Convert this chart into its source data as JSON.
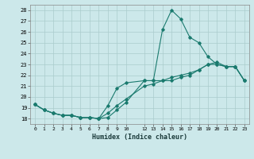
{
  "xlabel": "Humidex (Indice chaleur)",
  "bg_color": "#cce8ea",
  "grid_color": "#aacccc",
  "line_color": "#1a7a6e",
  "xlim": [
    -0.5,
    23.5
  ],
  "ylim": [
    17.5,
    28.5
  ],
  "xticks": [
    0,
    1,
    2,
    3,
    4,
    5,
    6,
    7,
    8,
    9,
    10,
    12,
    13,
    14,
    15,
    16,
    17,
    18,
    19,
    20,
    21,
    22,
    23
  ],
  "yticks": [
    18,
    19,
    20,
    21,
    22,
    23,
    24,
    25,
    26,
    27,
    28
  ],
  "lines": [
    {
      "x": [
        0,
        1,
        2,
        3,
        4,
        5,
        6,
        7,
        8,
        9,
        10,
        12,
        13,
        14,
        15,
        16,
        17,
        18,
        19,
        20,
        21,
        22,
        23
      ],
      "y": [
        19.3,
        18.8,
        18.5,
        18.3,
        18.3,
        18.1,
        18.1,
        18.0,
        18.1,
        18.8,
        19.5,
        21.5,
        21.5,
        26.2,
        28.0,
        27.2,
        25.5,
        25.0,
        23.7,
        23.0,
        22.8,
        22.8,
        21.5
      ]
    },
    {
      "x": [
        0,
        1,
        2,
        3,
        4,
        5,
        6,
        7,
        8,
        9,
        10,
        12,
        13,
        14,
        15,
        16,
        17,
        18,
        19,
        20,
        21,
        22,
        23
      ],
      "y": [
        19.3,
        18.8,
        18.5,
        18.3,
        18.3,
        18.1,
        18.1,
        18.0,
        19.2,
        20.8,
        21.3,
        21.5,
        21.5,
        21.5,
        21.5,
        21.8,
        22.0,
        22.5,
        23.0,
        23.0,
        22.8,
        22.8,
        21.5
      ]
    },
    {
      "x": [
        0,
        1,
        2,
        3,
        4,
        5,
        6,
        7,
        8,
        9,
        10,
        12,
        13,
        14,
        15,
        16,
        17,
        18,
        19,
        20,
        21,
        22,
        23
      ],
      "y": [
        19.3,
        18.8,
        18.5,
        18.3,
        18.3,
        18.1,
        18.1,
        18.0,
        18.5,
        19.2,
        19.8,
        21.0,
        21.2,
        21.5,
        21.8,
        22.0,
        22.2,
        22.5,
        23.0,
        23.2,
        22.8,
        22.8,
        21.5
      ]
    }
  ]
}
